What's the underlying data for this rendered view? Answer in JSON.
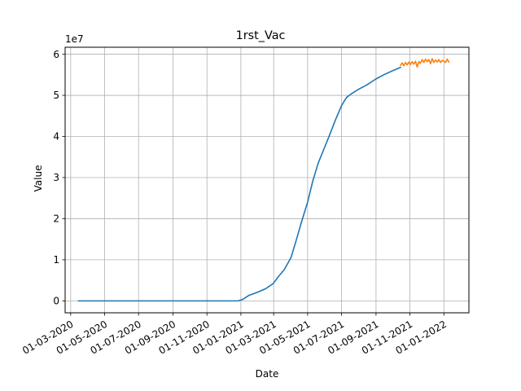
{
  "chart_data": {
    "type": "line",
    "title": "1rst_Vac",
    "xlabel": "Date",
    "ylabel": "Value",
    "y_offset_text": "1e7",
    "y_multiplier": 10000000,
    "grid": true,
    "xlim": [
      "2020-02-20",
      "2022-02-15"
    ],
    "ylim": [
      -2900000,
      61700000
    ],
    "x_ticks": [
      {
        "date": "2020-03-01",
        "label": "01-03-2020"
      },
      {
        "date": "2020-05-01",
        "label": "01-05-2020"
      },
      {
        "date": "2020-07-01",
        "label": "01-07-2020"
      },
      {
        "date": "2020-09-01",
        "label": "01-09-2020"
      },
      {
        "date": "2020-11-01",
        "label": "01-11-2020"
      },
      {
        "date": "2021-01-01",
        "label": "01-01-2021"
      },
      {
        "date": "2021-03-01",
        "label": "01-03-2021"
      },
      {
        "date": "2021-05-01",
        "label": "01-05-2021"
      },
      {
        "date": "2021-07-01",
        "label": "01-07-2021"
      },
      {
        "date": "2021-09-01",
        "label": "01-09-2021"
      },
      {
        "date": "2021-11-01",
        "label": "01-11-2021"
      },
      {
        "date": "2022-01-01",
        "label": "01-01-2022"
      }
    ],
    "y_ticks": [
      {
        "value": 0,
        "label": "0"
      },
      {
        "value": 10000000,
        "label": "1"
      },
      {
        "value": 20000000,
        "label": "2"
      },
      {
        "value": 30000000,
        "label": "3"
      },
      {
        "value": 40000000,
        "label": "4"
      },
      {
        "value": 50000000,
        "label": "5"
      },
      {
        "value": 60000000,
        "label": "6"
      }
    ],
    "series": [
      {
        "color": "#1f77b4",
        "points": [
          [
            "2020-03-15",
            0
          ],
          [
            "2020-06-01",
            0
          ],
          [
            "2020-09-01",
            0
          ],
          [
            "2020-12-01",
            0
          ],
          [
            "2020-12-27",
            0
          ],
          [
            "2021-01-05",
            400000
          ],
          [
            "2021-01-15",
            1300000
          ],
          [
            "2021-01-31",
            2100000
          ],
          [
            "2021-02-15",
            3000000
          ],
          [
            "2021-02-28",
            4200000
          ],
          [
            "2021-03-10",
            6000000
          ],
          [
            "2021-03-20",
            7600000
          ],
          [
            "2021-04-01",
            10500000
          ],
          [
            "2021-04-10",
            14500000
          ],
          [
            "2021-04-20",
            19200000
          ],
          [
            "2021-05-01",
            24000000
          ],
          [
            "2021-05-10",
            29000000
          ],
          [
            "2021-05-20",
            33500000
          ],
          [
            "2021-06-01",
            37500000
          ],
          [
            "2021-06-10",
            40500000
          ],
          [
            "2021-06-20",
            44000000
          ],
          [
            "2021-07-01",
            47500000
          ],
          [
            "2021-07-10",
            49500000
          ],
          [
            "2021-07-20",
            50500000
          ],
          [
            "2021-08-01",
            51500000
          ],
          [
            "2021-08-15",
            52500000
          ],
          [
            "2021-09-01",
            54000000
          ],
          [
            "2021-09-15",
            55000000
          ],
          [
            "2021-10-01",
            56000000
          ],
          [
            "2021-10-15",
            56800000
          ]
        ]
      },
      {
        "color": "#ff7f0e",
        "points": [
          [
            "2021-10-15",
            57300000
          ],
          [
            "2021-10-18",
            57900000
          ],
          [
            "2021-10-21",
            57200000
          ],
          [
            "2021-10-24",
            58000000
          ],
          [
            "2021-10-27",
            57400000
          ],
          [
            "2021-10-30",
            58100000
          ],
          [
            "2021-11-02",
            57500000
          ],
          [
            "2021-11-05",
            58200000
          ],
          [
            "2021-11-08",
            57600000
          ],
          [
            "2021-11-11",
            58300000
          ],
          [
            "2021-11-14",
            56900000
          ],
          [
            "2021-11-17",
            58200000
          ],
          [
            "2021-11-20",
            57800000
          ],
          [
            "2021-11-23",
            58700000
          ],
          [
            "2021-11-26",
            58000000
          ],
          [
            "2021-11-29",
            58800000
          ],
          [
            "2021-12-02",
            58200000
          ],
          [
            "2021-12-05",
            58700000
          ],
          [
            "2021-12-08",
            57700000
          ],
          [
            "2021-12-11",
            58900000
          ],
          [
            "2021-12-14",
            58000000
          ],
          [
            "2021-12-17",
            58600000
          ],
          [
            "2021-12-20",
            58100000
          ],
          [
            "2021-12-23",
            58700000
          ],
          [
            "2021-12-26",
            58000000
          ],
          [
            "2021-12-29",
            58500000
          ],
          [
            "2022-01-01",
            58300000
          ],
          [
            "2022-01-04",
            58000000
          ],
          [
            "2022-01-07",
            58800000
          ],
          [
            "2022-01-10",
            58100000
          ]
        ]
      }
    ]
  }
}
